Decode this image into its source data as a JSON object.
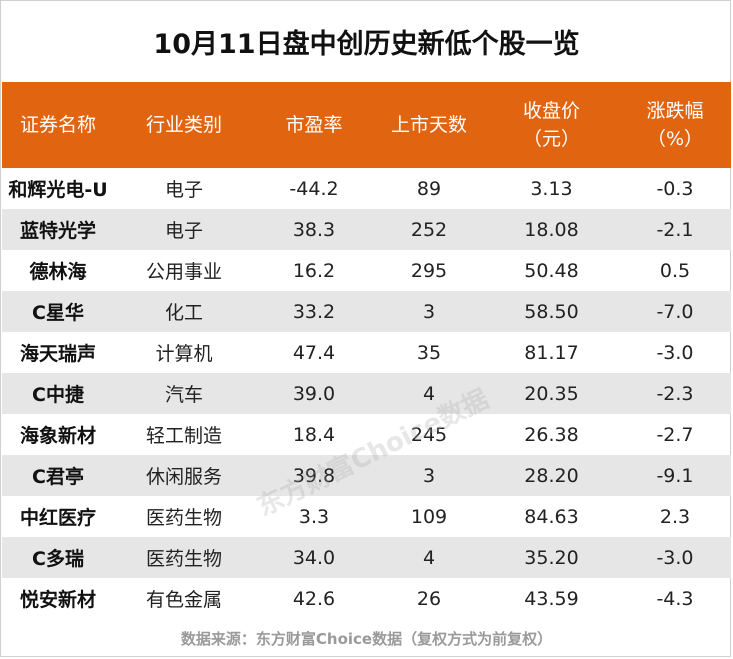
{
  "title": "10月11日盘中创历史新低个股一览",
  "header": {
    "col0": "证券名称",
    "col1": "行业类别",
    "col2": "市盈率",
    "col3": "上市天数",
    "col4_line1": "收盘价",
    "col4_line2": "（元）",
    "col5_line1": "涨跌幅",
    "col5_line2": "（%）"
  },
  "rows": [
    {
      "name": "和辉光电-U",
      "industry": "电子",
      "pe": "-44.2",
      "days": "89",
      "close": "3.13",
      "change": "-0.3"
    },
    {
      "name": "蓝特光学",
      "industry": "电子",
      "pe": "38.3",
      "days": "252",
      "close": "18.08",
      "change": "-2.1"
    },
    {
      "name": "德林海",
      "industry": "公用事业",
      "pe": "16.2",
      "days": "295",
      "close": "50.48",
      "change": "0.5"
    },
    {
      "name": "C星华",
      "industry": "化工",
      "pe": "33.2",
      "days": "3",
      "close": "58.50",
      "change": "-7.0"
    },
    {
      "name": "海天瑞声",
      "industry": "计算机",
      "pe": "47.4",
      "days": "35",
      "close": "81.17",
      "change": "-3.0"
    },
    {
      "name": "C中捷",
      "industry": "汽车",
      "pe": "39.0",
      "days": "4",
      "close": "20.35",
      "change": "-2.3"
    },
    {
      "name": "海象新材",
      "industry": "轻工制造",
      "pe": "18.4",
      "days": "245",
      "close": "26.38",
      "change": "-2.7"
    },
    {
      "name": "C君亭",
      "industry": "休闲服务",
      "pe": "39.8",
      "days": "3",
      "close": "28.20",
      "change": "-9.1"
    },
    {
      "name": "中红医疗",
      "industry": "医药生物",
      "pe": "3.3",
      "days": "109",
      "close": "84.63",
      "change": "2.3"
    },
    {
      "name": "C多瑞",
      "industry": "医药生物",
      "pe": "34.0",
      "days": "4",
      "close": "35.20",
      "change": "-3.0"
    },
    {
      "name": "悦安新材",
      "industry": "有色金属",
      "pe": "42.6",
      "days": "26",
      "close": "43.59",
      "change": "-4.3"
    }
  ],
  "footer": "数据来源：东方财富Choice数据（复权方式为前复权）",
  "watermark": "东方财富Choice数据",
  "colors": {
    "header_bg": "#e16511",
    "alt_row_bg": "#e6e6e6"
  }
}
